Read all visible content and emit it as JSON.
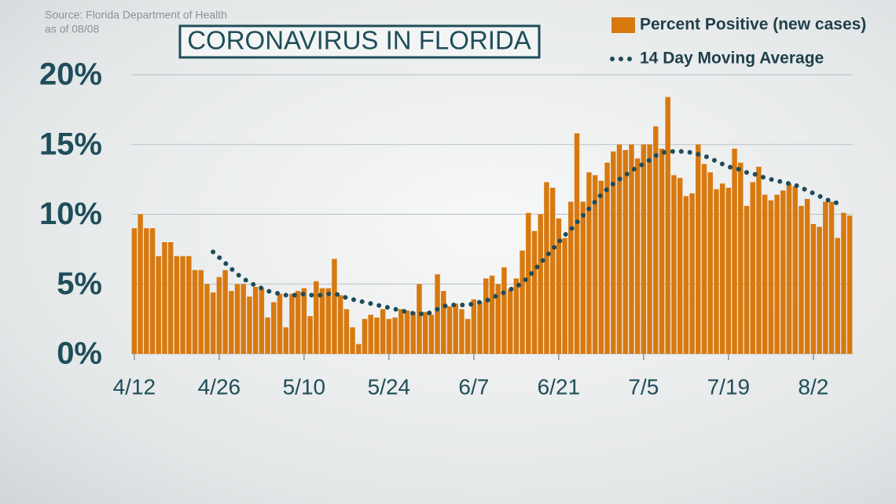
{
  "chart_data": {
    "type": "bar_line",
    "source": "Source: Florida Department of Health",
    "date_note": "as of 08/08",
    "title": "CORONAVIRUS IN FLORIDA",
    "categories": [
      "4/12",
      null,
      null,
      null,
      null,
      null,
      null,
      null,
      null,
      null,
      null,
      null,
      null,
      null,
      "4/26",
      null,
      null,
      null,
      null,
      null,
      null,
      null,
      null,
      null,
      null,
      null,
      null,
      null,
      "5/10",
      null,
      null,
      null,
      null,
      null,
      null,
      null,
      null,
      null,
      null,
      null,
      null,
      null,
      "5/24",
      null,
      null,
      null,
      null,
      null,
      null,
      null,
      null,
      null,
      null,
      null,
      null,
      null,
      "6/7",
      null,
      null,
      null,
      null,
      null,
      null,
      null,
      null,
      null,
      null,
      null,
      null,
      null,
      "6/21",
      null,
      null,
      null,
      null,
      null,
      null,
      null,
      null,
      null,
      null,
      null,
      null,
      null,
      "7/5",
      null,
      null,
      null,
      null,
      null,
      null,
      null,
      null,
      null,
      null,
      null,
      null,
      null,
      "7/19",
      null,
      null,
      null,
      null,
      null,
      null,
      null,
      null,
      null,
      null,
      null,
      null,
      null,
      "8/2",
      null,
      null,
      null,
      null,
      null,
      null
    ],
    "series": [
      {
        "name": "Percent Positive (new cases)",
        "kind": "bar",
        "color": "#d8790f",
        "values": [
          9,
          10,
          9,
          9,
          7,
          8,
          8,
          7,
          7,
          7,
          6,
          6,
          5,
          4.4,
          5.5,
          6,
          4.5,
          5,
          5,
          4.1,
          4.8,
          4.7,
          2.6,
          3.7,
          4.3,
          1.9,
          4.3,
          4.5,
          4.7,
          2.7,
          5.2,
          4.7,
          4.7,
          6.8,
          4.2,
          3.2,
          1.9,
          0.7,
          2.5,
          2.8,
          2.6,
          3.2,
          2.5,
          2.6,
          3.2,
          3.1,
          3.0,
          5.0,
          3.0,
          2.8,
          5.7,
          4.5,
          3.4,
          3.6,
          3.2,
          2.5,
          3.9,
          3.7,
          5.4,
          5.6,
          5.0,
          6.2,
          4.6,
          5.4,
          7.4,
          10.1,
          8.8,
          10.0,
          12.3,
          11.9,
          9.7,
          8.3,
          10.9,
          15.8,
          10.9,
          13.0,
          12.8,
          12.4,
          13.7,
          14.5,
          15.0,
          14.6,
          15.0,
          14.0,
          15.0,
          15.0,
          16.3,
          14.7,
          18.4,
          12.8,
          12.6,
          11.3,
          11.5,
          15.0,
          13.6,
          13.0,
          11.8,
          12.2,
          11.9,
          14.7,
          13.7,
          10.6,
          12.3,
          13.4,
          11.4,
          11.0,
          11.4,
          11.7,
          12.2,
          12.0,
          10.6,
          11.1,
          9.3,
          9.1,
          10.9,
          10.9,
          8.3,
          10.1,
          9.9
        ]
      },
      {
        "name": "14 Day Moving Average",
        "kind": "line",
        "color": "#1d4c5a",
        "values": [
          null,
          null,
          null,
          null,
          null,
          null,
          null,
          null,
          null,
          null,
          null,
          null,
          null,
          7.3,
          6.9,
          6.5,
          6.1,
          5.7,
          5.4,
          5.1,
          4.9,
          4.7,
          4.5,
          4.4,
          4.3,
          4.2,
          4.2,
          4.2,
          4.3,
          4.2,
          4.2,
          4.2,
          4.3,
          4.3,
          4.2,
          4.0,
          3.9,
          3.8,
          3.7,
          3.6,
          3.5,
          3.4,
          3.3,
          3.2,
          3.1,
          3.0,
          2.9,
          2.9,
          2.8,
          3.0,
          3.2,
          3.4,
          3.5,
          3.5,
          3.5,
          3.5,
          3.6,
          3.7,
          3.8,
          4.0,
          4.2,
          4.4,
          4.6,
          4.8,
          5.1,
          5.5,
          6.0,
          6.5,
          7.0,
          7.5,
          8.0,
          8.5,
          8.9,
          9.4,
          9.9,
          10.4,
          10.9,
          11.4,
          11.8,
          12.2,
          12.5,
          12.8,
          13.1,
          13.4,
          13.6,
          13.9,
          14.2,
          14.4,
          14.5,
          14.5,
          14.5,
          14.5,
          14.4,
          14.3,
          14.2,
          14.0,
          13.8,
          13.6,
          13.4,
          13.3,
          13.2,
          13.0,
          12.9,
          12.8,
          12.6,
          12.5,
          12.4,
          12.3,
          12.2,
          12.1,
          11.9,
          11.7,
          11.5,
          11.3,
          11.1,
          10.9,
          10.8,
          10.6,
          null
        ]
      }
    ],
    "ylim": [
      0,
      20
    ],
    "yticks": [
      {
        "value": 0,
        "label": "0%"
      },
      {
        "value": 5,
        "label": "5%"
      },
      {
        "value": 10,
        "label": "10%"
      },
      {
        "value": 15,
        "label": "15%"
      },
      {
        "value": 20,
        "label": "20%"
      }
    ],
    "grid": true
  }
}
